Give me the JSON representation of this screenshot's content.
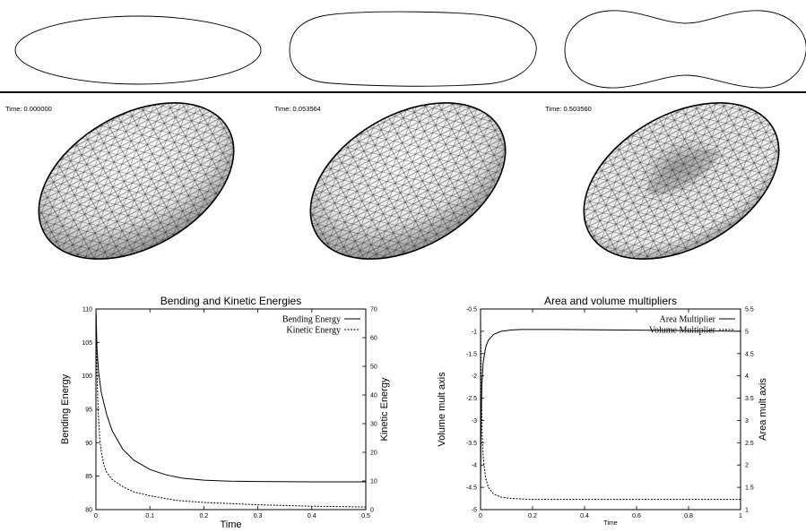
{
  "snapshots": [
    {
      "time_label": "Time: 0.000000"
    },
    {
      "time_label": "Time: 0.053564"
    },
    {
      "time_label": "Time: 0.503560"
    }
  ],
  "chart_data": [
    {
      "type": "line",
      "title": "Bending and Kinetic Energies",
      "xlabel": "Time",
      "ylabel": "Bending Energy",
      "y2label": "Kinetic Energy",
      "xlim": [
        0,
        0.5
      ],
      "ylim": [
        80,
        110
      ],
      "y2lim": [
        0,
        70
      ],
      "x_ticks": [
        "0",
        "0.1",
        "0.2",
        "0.3",
        "0.4",
        "0.5"
      ],
      "y_ticks": [
        "80",
        "85",
        "90",
        "95",
        "100",
        "105",
        "110"
      ],
      "y2_ticks": [
        "0",
        "10",
        "20",
        "30",
        "40",
        "50",
        "60",
        "70"
      ],
      "legend_position": "top-right",
      "series": [
        {
          "name": "Bending Energy",
          "axis": "left",
          "style": "solid",
          "x": [
            0.0,
            0.002,
            0.005,
            0.01,
            0.02,
            0.03,
            0.05,
            0.07,
            0.1,
            0.13,
            0.16,
            0.2,
            0.25,
            0.3,
            0.4,
            0.5
          ],
          "y": [
            110,
            104,
            100.5,
            97.5,
            94.2,
            91.8,
            89.0,
            87.4,
            86.0,
            85.2,
            84.7,
            84.4,
            84.25,
            84.2,
            84.15,
            84.15
          ]
        },
        {
          "name": "Kinetic Energy",
          "axis": "right",
          "style": "dashed",
          "x": [
            0.0,
            0.002,
            0.004,
            0.007,
            0.01,
            0.015,
            0.02,
            0.03,
            0.05,
            0.07,
            0.1,
            0.15,
            0.2,
            0.3,
            0.4,
            0.5
          ],
          "y": [
            70,
            48,
            35,
            25,
            20,
            15.5,
            13.0,
            10.5,
            8.0,
            6.2,
            4.8,
            3.2,
            2.5,
            1.7,
            1.2,
            0.9
          ]
        }
      ]
    },
    {
      "type": "line",
      "title": "Area and volume multipliers",
      "xlabel": "Time",
      "ylabel": "Volume mult axis",
      "y2label": "Area mult axis",
      "xlim": [
        0,
        1
      ],
      "ylim": [
        -5,
        -0.5
      ],
      "y2lim": [
        1,
        5.5
      ],
      "x_ticks": [
        "0",
        "0.2",
        "0.4",
        "0.6",
        "0.8",
        "1"
      ],
      "y_ticks": [
        "-5",
        "-4.5",
        "-4",
        "-3.5",
        "-3",
        "-2.5",
        "-2",
        "-1.5",
        "-1",
        "-0.5"
      ],
      "y2_ticks": [
        "1",
        "1.5",
        "2",
        "2.5",
        "3",
        "3.5",
        "4",
        "4.5",
        "5",
        "5.5"
      ],
      "legend_position": "top-right",
      "series": [
        {
          "name": "Area Multiplier",
          "axis": "left",
          "style": "solid",
          "x": [
            0.0,
            0.002,
            0.005,
            0.01,
            0.02,
            0.03,
            0.05,
            0.08,
            0.12,
            0.16,
            0.2,
            0.3,
            0.5,
            0.7,
            0.85,
            1.0
          ],
          "y": [
            -4.6,
            -3.0,
            -2.2,
            -1.7,
            -1.35,
            -1.2,
            -1.07,
            -1.0,
            -0.97,
            -0.96,
            -0.96,
            -0.96,
            -0.97,
            -0.98,
            -0.99,
            -1.0
          ]
        },
        {
          "name": "Volume Multiplier",
          "axis": "right",
          "style": "dashed",
          "x": [
            0.0,
            0.0015,
            0.003,
            0.006,
            0.01,
            0.015,
            0.02,
            0.03,
            0.05,
            0.08,
            0.12,
            0.16,
            0.2,
            0.3,
            0.5,
            1.0
          ],
          "y": [
            5.35,
            4.5,
            3.6,
            2.8,
            2.2,
            1.9,
            1.7,
            1.5,
            1.35,
            1.28,
            1.25,
            1.24,
            1.23,
            1.23,
            1.23,
            1.23
          ]
        }
      ]
    }
  ]
}
